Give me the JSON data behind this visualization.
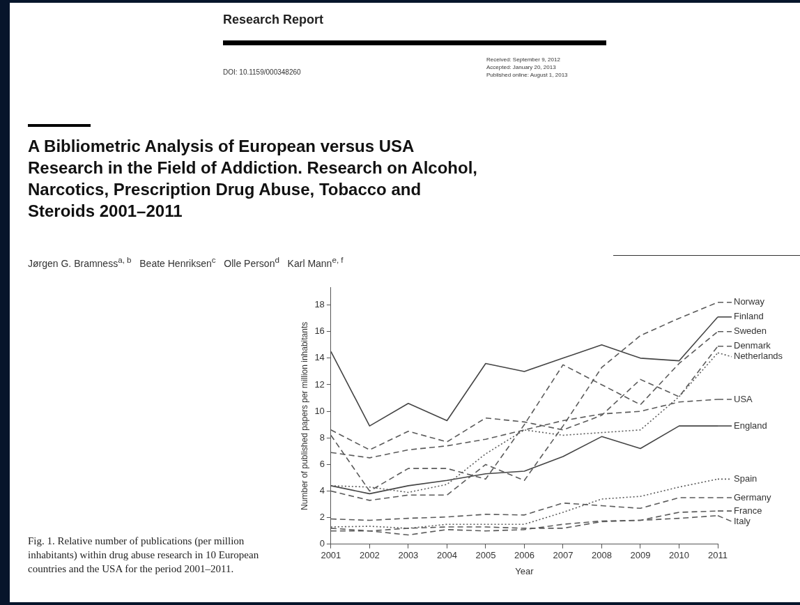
{
  "chart_data": {
    "type": "line",
    "title": "A Bibliometric Analysis of European versus USA Research in the Field of Addiction. Research on Alcohol, Narcotics, Prescription Drug Abuse, Tobacco and Steroids 2001–2011",
    "annotations": [
      "Research Report",
      "DOI: 10.1159/000348260",
      "Received: September 9, 2012",
      "Accepted: January 20, 2013",
      "Published online: August 1, 2013",
      "Jørgen G. Bramness$^{a, b}$   Beate Henriksen$^{c}$   Olle Person$^{d}$   Karl Mann$^{e, f}$",
      "Fig. 1. Relative number of publications (per million inhabitants) within drug abuse research in 10 European countries and the USA for the period 2001–2011."
    ],
    "xlabel": "Year",
    "ylabel": "Number of published papers per million inhabitants",
    "categories": [
      "2001",
      "2002",
      "2003",
      "2004",
      "2005",
      "2006",
      "2007",
      "2008",
      "2009",
      "2010",
      "2011"
    ],
    "ylim": [
      0,
      19.3
    ],
    "yticks": [
      0,
      2,
      4,
      6,
      8,
      10,
      12,
      14,
      16,
      18
    ],
    "grid": false,
    "legend": "right",
    "marker": "none",
    "series": [
      {
        "name": "Norway",
        "color": "#5a5a5a",
        "line_style": "dashed",
        "values": [
          4.0,
          3.3,
          3.7,
          3.7,
          6.0,
          4.8,
          8.9,
          13.3,
          15.7,
          17.0,
          18.2
        ]
      },
      {
        "name": "Finland",
        "color": "#444444",
        "line_style": "solid",
        "values": [
          14.5,
          8.9,
          10.6,
          9.3,
          13.6,
          13.0,
          14.0,
          15.0,
          14.0,
          13.8,
          17.1
        ]
      },
      {
        "name": "Sweden",
        "color": "#5a5a5a",
        "line_style": "dashed",
        "values": [
          8.2,
          4.0,
          5.7,
          5.7,
          4.9,
          9.0,
          13.5,
          12.0,
          10.5,
          13.6,
          16.0
        ]
      },
      {
        "name": "Denmark",
        "color": "#5a5a5a",
        "line_style": "dashed",
        "values": [
          8.6,
          7.1,
          8.5,
          7.7,
          9.5,
          9.2,
          8.6,
          9.7,
          12.4,
          11.1,
          14.9
        ]
      },
      {
        "name": "Netherlands",
        "color": "#5a5a5a",
        "line_style": "dotted",
        "values": [
          4.4,
          4.3,
          3.9,
          4.5,
          6.8,
          8.6,
          8.2,
          8.4,
          8.6,
          11.1,
          14.4
        ]
      },
      {
        "name": "USA",
        "color": "#5a5a5a",
        "line_style": "dashed",
        "values": [
          6.9,
          6.5,
          7.1,
          7.4,
          7.9,
          8.6,
          9.3,
          9.8,
          10.0,
          10.7,
          10.9
        ]
      },
      {
        "name": "England",
        "color": "#444444",
        "line_style": "solid",
        "values": [
          4.4,
          3.8,
          4.4,
          4.8,
          5.3,
          5.5,
          6.6,
          8.1,
          7.2,
          8.9,
          8.9
        ]
      },
      {
        "name": "Spain",
        "color": "#5a5a5a",
        "line_style": "dotted",
        "values": [
          1.3,
          1.35,
          1.2,
          1.5,
          1.5,
          1.5,
          2.4,
          3.4,
          3.6,
          4.3,
          4.9
        ]
      },
      {
        "name": "Germany",
        "color": "#5a5a5a",
        "line_style": "dashed",
        "values": [
          1.9,
          1.8,
          1.95,
          2.05,
          2.25,
          2.2,
          3.1,
          2.9,
          2.7,
          3.5,
          3.5
        ]
      },
      {
        "name": "France",
        "color": "#5a5a5a",
        "line_style": "dashed",
        "values": [
          1.2,
          1.0,
          1.2,
          1.3,
          1.3,
          1.2,
          1.2,
          1.7,
          1.8,
          2.4,
          2.5
        ]
      },
      {
        "name": "Italy",
        "color": "#5a5a5a",
        "line_style": "dashed",
        "values": [
          1.0,
          1.0,
          0.7,
          1.1,
          1.0,
          1.1,
          1.5,
          1.75,
          1.8,
          1.95,
          2.15
        ]
      }
    ]
  }
}
